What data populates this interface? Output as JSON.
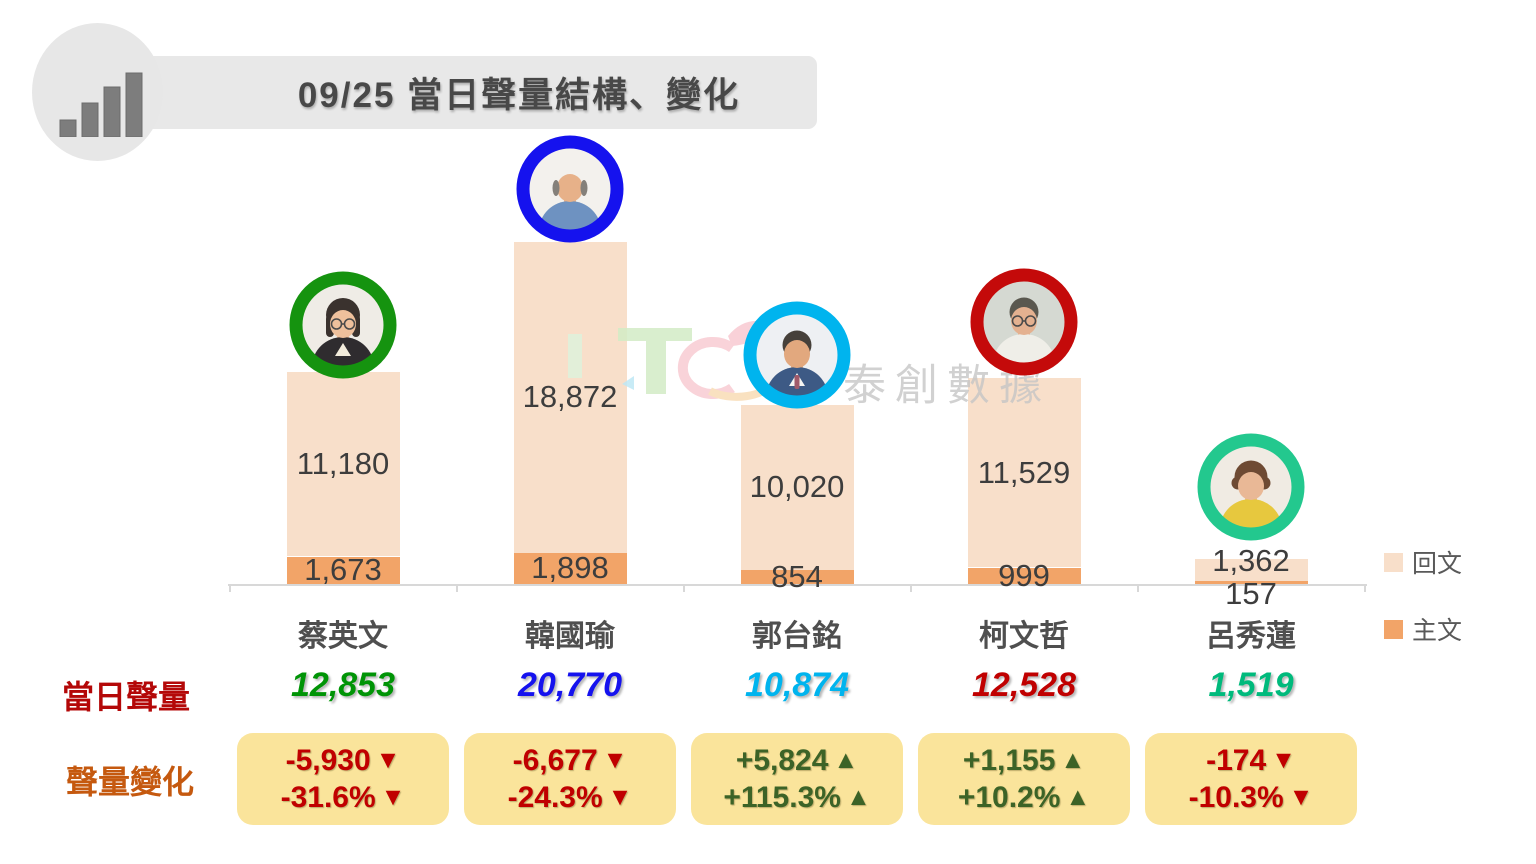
{
  "title": {
    "text": "09/25 當日聲量結構、變化"
  },
  "watermark": {
    "name": "泰創數據"
  },
  "icons": {
    "up": "▲",
    "down": "▼"
  },
  "row_labels": {
    "daily_volume": "當日聲量",
    "volume_change": "聲量變化"
  },
  "legend": {
    "items": [
      {
        "label": "回文"
      },
      {
        "label": "主文"
      }
    ]
  },
  "colors": {
    "reply_bar": "#f8dfca",
    "main_bar": "#f2a468",
    "change_box_bg": "#fae49b",
    "negative": "#c00000",
    "positive": "#3c6327",
    "daily_volume_label": "#b40808",
    "volume_change_label": "#c5590f"
  },
  "chart_data": {
    "type": "bar",
    "stacked": true,
    "orientation": "vertical",
    "title": "09/25 當日聲量結構、變化",
    "categories": [
      "蔡英文",
      "韓國瑜",
      "郭台銘",
      "柯文哲",
      "呂秀蓮"
    ],
    "series": [
      {
        "name": "回文",
        "values": [
          11180,
          18872,
          10020,
          11529,
          1362
        ]
      },
      {
        "name": "主文",
        "values": [
          1673,
          1898,
          854,
          999,
          157
        ]
      }
    ],
    "totals": [
      12853,
      20770,
      10874,
      12528,
      1519
    ],
    "changes": [
      -5930,
      -6677,
      5824,
      1155,
      -174
    ],
    "changes_pct": [
      -31.6,
      -24.3,
      115.3,
      10.2,
      -10.3
    ],
    "value_labels": true,
    "grid": false,
    "legend_position": "right"
  },
  "candidates": [
    {
      "name": "蔡英文",
      "replies": "11,180",
      "mains": "1,673",
      "total": "12,853",
      "total_color": "#009406",
      "ring_color": "#15930f",
      "change_value": "-5,930",
      "change_pct": "-31.6%",
      "direction": "down"
    },
    {
      "name": "韓國瑜",
      "replies": "18,872",
      "mains": "1,898",
      "total": "20,770",
      "total_color": "#1512ee",
      "ring_color": "#1512ee",
      "change_value": "-6,677",
      "change_pct": "-24.3%",
      "direction": "down"
    },
    {
      "name": "郭台銘",
      "replies": "10,020",
      "mains": "854",
      "total": "10,874",
      "total_color": "#00b4ee",
      "ring_color": "#00b4ee",
      "change_value": "+5,824",
      "change_pct": "+115.3%",
      "direction": "up"
    },
    {
      "name": "柯文哲",
      "replies": "11,529",
      "mains": "999",
      "total": "12,528",
      "total_color": "#c00000",
      "ring_color": "#c40a0a",
      "change_value": "+1,155",
      "change_pct": "+10.2%",
      "direction": "up"
    },
    {
      "name": "呂秀蓮",
      "replies": "1,362",
      "mains": "157",
      "total": "1,519",
      "total_color": "#00ba7c",
      "ring_color": "#23c88e",
      "change_value": "-174",
      "change_pct": "-10.3%",
      "direction": "down"
    }
  ]
}
